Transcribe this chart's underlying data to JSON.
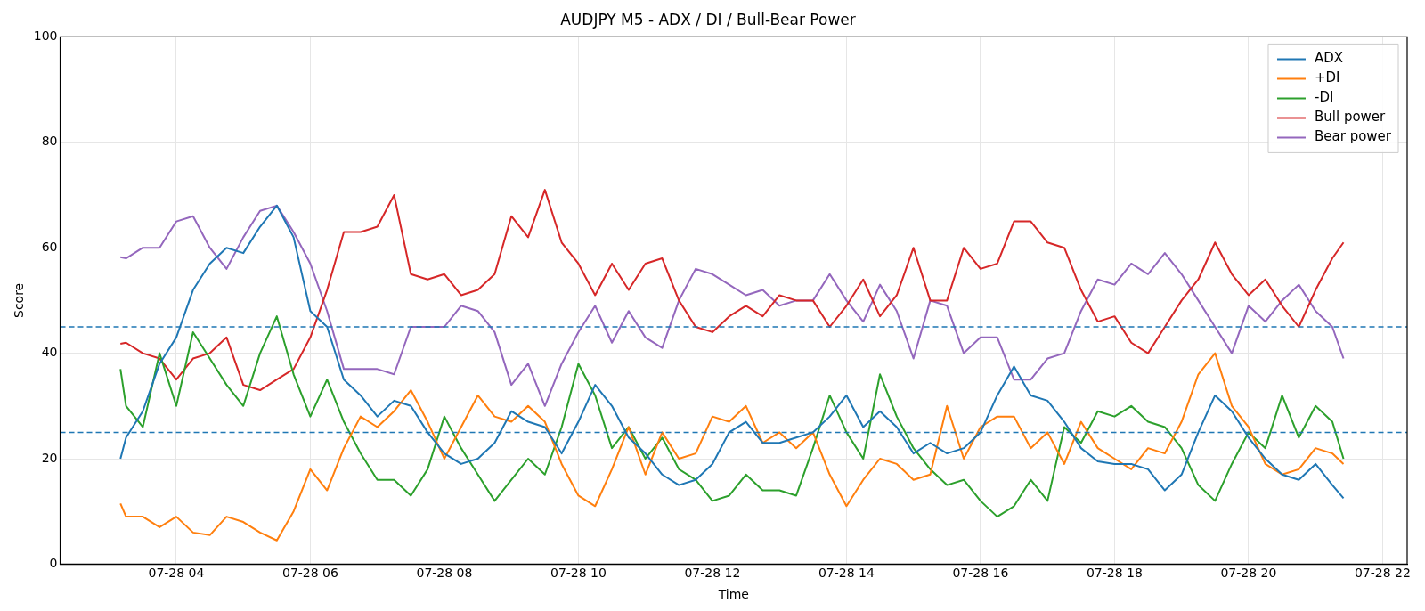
{
  "chart_data": {
    "type": "line",
    "title": "AUDJPY M5 - ADX / DI / Bull-Bear Power",
    "xlabel": "Time",
    "ylabel": "Score",
    "x": [
      "--07-28T03:10",
      "--07-28T03:15",
      "--07-28T03:30",
      "--07-28T03:45",
      "--07-28T04:00",
      "--07-28T04:15",
      "--07-28T04:30",
      "--07-28T04:45",
      "--07-28T05:00",
      "--07-28T05:15",
      "--07-28T05:30",
      "--07-28T05:45",
      "--07-28T06:00",
      "--07-28T06:15",
      "--07-28T06:30",
      "--07-28T06:45",
      "--07-28T07:00",
      "--07-28T07:15",
      "--07-28T07:30",
      "--07-28T07:45",
      "--07-28T08:00",
      "--07-28T08:15",
      "--07-28T08:30",
      "--07-28T08:45",
      "--07-28T09:00",
      "--07-28T09:15",
      "--07-28T09:30",
      "--07-28T09:45",
      "--07-28T10:00",
      "--07-28T10:15",
      "--07-28T10:30",
      "--07-28T10:45",
      "--07-28T11:00",
      "--07-28T11:15",
      "--07-28T11:30",
      "--07-28T11:45",
      "--07-28T12:00",
      "--07-28T12:15",
      "--07-28T12:30",
      "--07-28T12:45",
      "--07-28T13:00",
      "--07-28T13:15",
      "--07-28T13:30",
      "--07-28T13:45",
      "--07-28T14:00",
      "--07-28T14:15",
      "--07-28T14:30",
      "--07-28T14:45",
      "--07-28T15:00",
      "--07-28T15:15",
      "--07-28T15:30",
      "--07-28T15:45",
      "--07-28T16:00",
      "--07-28T16:15",
      "--07-28T16:30",
      "--07-28T16:45",
      "--07-28T17:00",
      "--07-28T17:15",
      "--07-28T17:30",
      "--07-28T17:45",
      "--07-28T18:00",
      "--07-28T18:15",
      "--07-28T18:30",
      "--07-28T18:45",
      "--07-28T19:00",
      "--07-28T19:15",
      "--07-28T19:30",
      "--07-28T19:45",
      "--07-28T20:00",
      "--07-28T20:15",
      "--07-28T20:30",
      "--07-28T20:45",
      "--07-28T21:00",
      "--07-28T21:15",
      "--07-28T21:25"
    ],
    "series": [
      {
        "name": "ADX",
        "color": "#1f77b4",
        "values": [
          20,
          24,
          29,
          38,
          43,
          52,
          57,
          60,
          59,
          64,
          68,
          62,
          48,
          45,
          35,
          32,
          28,
          31,
          30,
          25,
          21,
          19,
          20,
          23,
          29,
          27,
          26,
          21,
          27,
          34,
          30,
          24,
          21,
          17,
          15,
          16,
          19,
          25,
          27,
          23,
          23,
          24,
          25,
          28,
          32,
          26,
          29,
          26,
          21,
          23,
          21,
          22,
          25,
          32,
          37.5,
          32,
          31,
          27,
          22,
          19.5,
          19,
          19,
          18,
          14,
          17,
          25,
          32,
          29,
          24,
          20,
          17,
          16,
          19,
          15,
          12.5
        ]
      },
      {
        "name": "+DI",
        "color": "#ff7f0e",
        "values": [
          11.5,
          9,
          9,
          7,
          9,
          6,
          5.5,
          9,
          8,
          6,
          4.5,
          10,
          18,
          14,
          22,
          28,
          26,
          29,
          33,
          27,
          20,
          26,
          32,
          28,
          27,
          30,
          27,
          19,
          13,
          11,
          18,
          26,
          17,
          25,
          20,
          21,
          28,
          27,
          30,
          23,
          25,
          22,
          25,
          17,
          11,
          16,
          20,
          19,
          16,
          17,
          30,
          20,
          26,
          28,
          28,
          22,
          25,
          19,
          27,
          22,
          20,
          18,
          22,
          21,
          27,
          36,
          40,
          30,
          26,
          19,
          17,
          18,
          22,
          21,
          19
        ]
      },
      {
        "name": "-DI",
        "color": "#2ca02c",
        "values": [
          37,
          30,
          26,
          40,
          30,
          44,
          39,
          34,
          30,
          40,
          47,
          36,
          28,
          35,
          27,
          21,
          16,
          16,
          13,
          18,
          28,
          22,
          17,
          12,
          16,
          20,
          17,
          26,
          38,
          32,
          22,
          26,
          20,
          24,
          18,
          16,
          12,
          13,
          17,
          14,
          14,
          13,
          22,
          32,
          25,
          20,
          36,
          28,
          22,
          18,
          15,
          16,
          12,
          9,
          11,
          16,
          12,
          26,
          23,
          29,
          28,
          30,
          27,
          26,
          22,
          15,
          12,
          19,
          25,
          22,
          32,
          24,
          30,
          27,
          20
        ]
      },
      {
        "name": "Bull power",
        "color": "#d62728",
        "values": [
          41.8,
          42,
          40,
          39,
          35,
          39,
          40,
          43,
          34,
          33,
          35,
          37,
          43,
          52,
          63,
          63,
          64,
          70,
          55,
          54,
          55,
          51,
          52,
          55,
          66,
          62,
          71,
          61,
          57,
          51,
          57,
          52,
          57,
          58,
          50,
          45,
          44,
          47,
          49,
          47,
          51,
          50,
          50,
          45,
          49,
          54,
          47,
          51,
          60,
          50,
          50,
          60,
          56,
          57,
          65,
          65,
          61,
          60,
          52,
          46,
          47,
          42,
          40,
          45,
          50,
          54,
          61,
          55,
          51,
          54,
          49,
          45,
          52,
          58,
          61
        ]
      },
      {
        "name": "Bear power",
        "color": "#9467bd",
        "values": [
          58.2,
          58,
          60,
          60,
          65,
          66,
          60,
          56,
          62,
          67,
          68,
          63,
          57,
          48,
          37,
          37,
          37,
          36,
          45,
          45,
          45,
          49,
          48,
          44,
          34,
          38,
          30,
          38,
          44,
          49,
          42,
          48,
          43,
          41,
          50,
          56,
          55,
          53,
          51,
          52,
          49,
          50,
          50,
          55,
          50,
          46,
          53,
          48,
          39,
          50,
          49,
          40,
          43,
          43,
          35,
          35,
          39,
          40,
          48,
          54,
          53,
          57,
          55,
          59,
          55,
          50,
          45,
          40,
          49,
          46,
          50,
          53,
          48,
          45,
          39
        ]
      }
    ],
    "xlim": [
      "--07-28T02:16",
      "--07-28T22:22"
    ],
    "xticks": [
      {
        "value": "--07-28T04:00",
        "label": "07-28 04"
      },
      {
        "value": "--07-28T06:00",
        "label": "07-28 06"
      },
      {
        "value": "--07-28T08:00",
        "label": "07-28 08"
      },
      {
        "value": "--07-28T10:00",
        "label": "07-28 10"
      },
      {
        "value": "--07-28T12:00",
        "label": "07-28 12"
      },
      {
        "value": "--07-28T14:00",
        "label": "07-28 14"
      },
      {
        "value": "--07-28T16:00",
        "label": "07-28 16"
      },
      {
        "value": "--07-28T18:00",
        "label": "07-28 18"
      },
      {
        "value": "--07-28T20:00",
        "label": "07-28 20"
      },
      {
        "value": "--07-28T22:00",
        "label": "07-28 22"
      }
    ],
    "ylim": [
      0,
      100
    ],
    "yticks": [
      0,
      20,
      40,
      60,
      80,
      100
    ],
    "ref_lines": [
      {
        "axis": "y",
        "value": 45,
        "color": "#1f77b4",
        "line_style": "dashed"
      },
      {
        "axis": "y",
        "value": 25,
        "color": "#1f77b4",
        "line_style": "dashed"
      }
    ],
    "grid": true,
    "legend": "top right",
    "marker": "none",
    "line_style": "solid"
  }
}
